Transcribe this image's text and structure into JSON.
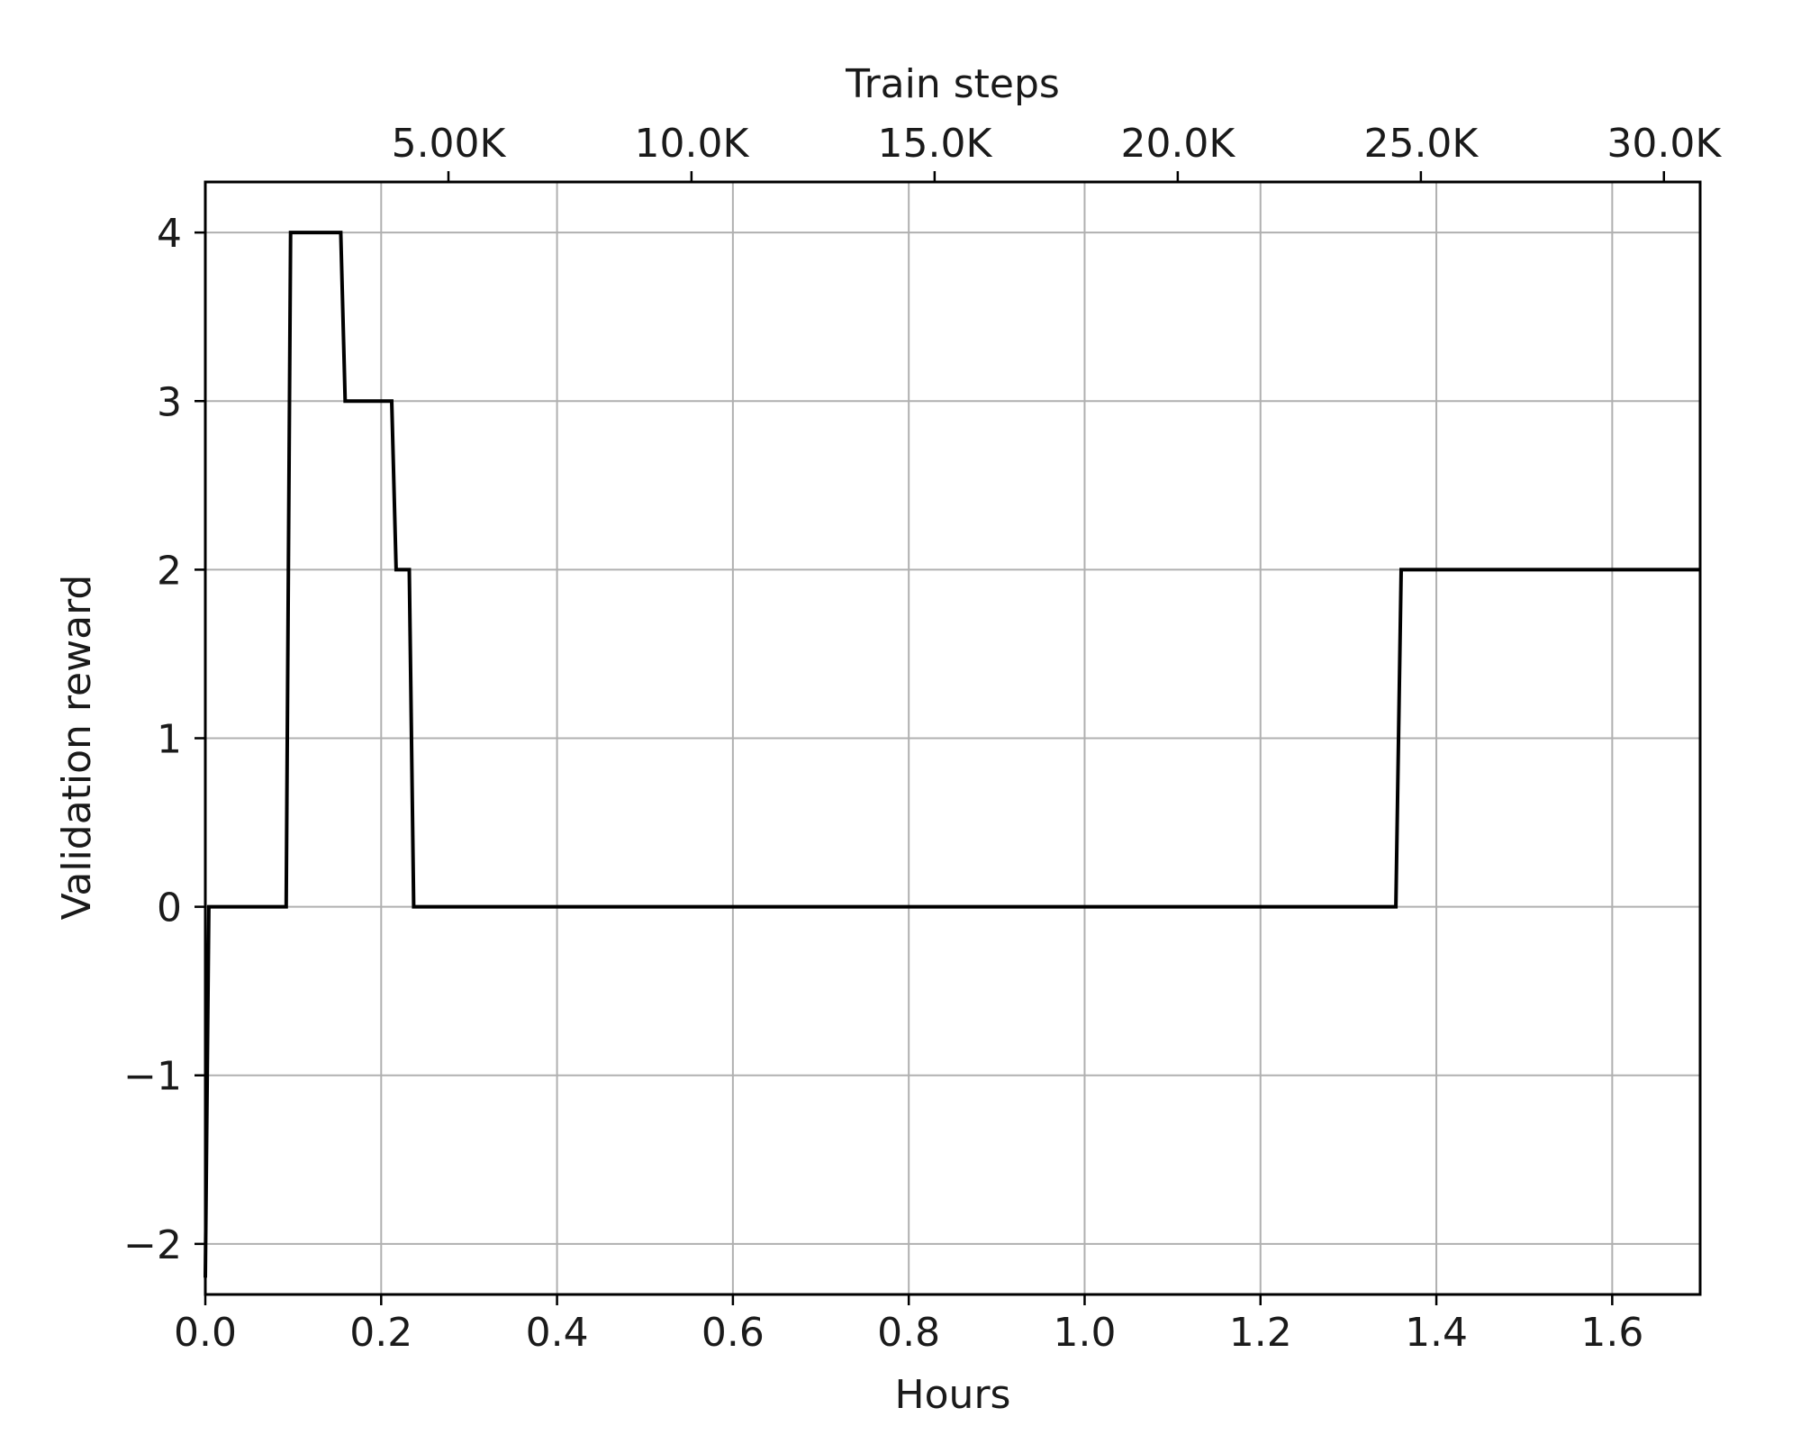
{
  "chart_data": {
    "type": "line",
    "line_style": "step",
    "xlabel": "Hours",
    "ylabel": "Validation reward",
    "top_xlabel": "Train steps",
    "xlim": [
      0.0,
      1.7
    ],
    "ylim": [
      -2.3,
      4.3
    ],
    "x_ticks": [
      0.0,
      0.2,
      0.4,
      0.6,
      0.8,
      1.0,
      1.2,
      1.4,
      1.6
    ],
    "x_tick_labels": [
      "0.0",
      "0.2",
      "0.4",
      "0.6",
      "0.8",
      "1.0",
      "1.2",
      "1.4",
      "1.6"
    ],
    "y_ticks": [
      -2,
      -1,
      0,
      1,
      2,
      3,
      4
    ],
    "y_tick_labels": [
      "−2",
      "−1",
      "0",
      "1",
      "2",
      "3",
      "4"
    ],
    "top_x_ticks_hours": [
      0.2765,
      0.5529,
      0.8294,
      1.1059,
      1.3824,
      1.6588
    ],
    "top_x_tick_labels": [
      "5.00K",
      "10.0K",
      "15.0K",
      "20.0K",
      "25.0K",
      "30.0K"
    ],
    "grid": true,
    "series": [
      {
        "color": "#000000",
        "x": [
          0.0,
          0.004,
          0.092,
          0.097,
          0.154,
          0.159,
          0.212,
          0.217,
          0.232,
          0.237,
          1.354,
          1.36,
          1.7
        ],
        "y": [
          -2.2,
          0,
          0,
          4,
          4,
          3,
          3,
          2,
          2,
          0,
          0,
          2,
          2
        ]
      }
    ]
  }
}
